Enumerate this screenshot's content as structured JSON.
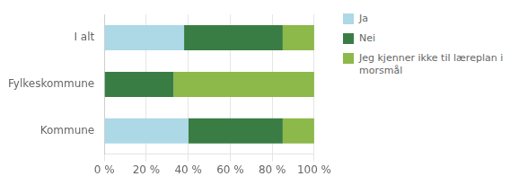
{
  "chart_data": {
    "type": "bar",
    "orientation": "horizontal",
    "stacked": true,
    "categories": [
      "Kommune",
      "Fylkeskommune",
      "I alt"
    ],
    "series": [
      {
        "name": "Ja",
        "color": "#add8e6",
        "values": [
          40,
          0,
          38
        ]
      },
      {
        "name": "Nei",
        "color": "#3a7d44",
        "values": [
          45,
          33,
          47
        ]
      },
      {
        "name": "Jeg kjenner ikke til læreplan i\nmorsmål",
        "color": "#8db84a",
        "values": [
          15,
          67,
          15
        ]
      }
    ],
    "xlim": [
      0,
      100
    ],
    "xticks": [
      {
        "value": 0,
        "label": "0 %"
      },
      {
        "value": 20,
        "label": "20 %"
      },
      {
        "value": 40,
        "label": "40 %"
      },
      {
        "value": 60,
        "label": "60 %"
      },
      {
        "value": 80,
        "label": "80 %"
      },
      {
        "value": 100,
        "label": "100 %"
      }
    ],
    "grid": true,
    "legend": "right"
  }
}
